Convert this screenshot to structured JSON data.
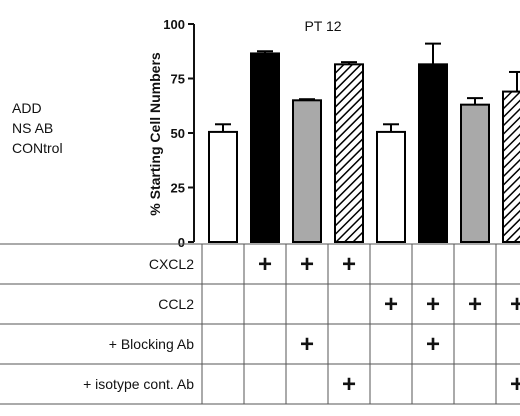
{
  "side_labels": [
    "ADD",
    "NS AB",
    "CONtrol"
  ],
  "chart_data": {
    "type": "bar",
    "title": "PT 12",
    "ylabel": "% Starting Cell Numbers",
    "ylim": [
      0,
      100
    ],
    "yticks": [
      0,
      25,
      50,
      75,
      100
    ],
    "grid": false,
    "bars": [
      {
        "value": 50.5,
        "error": 3.5,
        "fill": "white"
      },
      {
        "value": 86.5,
        "error": 1.0,
        "fill": "black"
      },
      {
        "value": 65.0,
        "error": 0.5,
        "fill": "gray"
      },
      {
        "value": 81.5,
        "error": 1.0,
        "fill": "hatched"
      },
      {
        "value": 50.5,
        "error": 3.5,
        "fill": "white"
      },
      {
        "value": 81.5,
        "error": 9.5,
        "fill": "black"
      },
      {
        "value": 63.0,
        "error": 3.0,
        "fill": "gray"
      },
      {
        "value": 69.0,
        "error": 9.0,
        "fill": "hatched"
      }
    ],
    "table": {
      "rows": [
        {
          "label": "CXCL2",
          "marks": [
            "",
            "+",
            "+",
            "+",
            "",
            "",
            "",
            ""
          ]
        },
        {
          "label": "CCL2",
          "marks": [
            "",
            "",
            "",
            "",
            "+",
            "+",
            "+",
            "+"
          ]
        },
        {
          "label": "+ Blocking Ab",
          "marks": [
            "",
            "",
            "+",
            "",
            "",
            "+",
            "",
            ""
          ]
        },
        {
          "label": "+ isotype cont. Ab",
          "marks": [
            "",
            "",
            "",
            "+",
            "",
            "",
            "",
            "+"
          ]
        }
      ]
    }
  },
  "colors": {
    "black": "#000000",
    "gray": "#a9a9a9",
    "white": "#ffffff",
    "axis": "#111111"
  }
}
